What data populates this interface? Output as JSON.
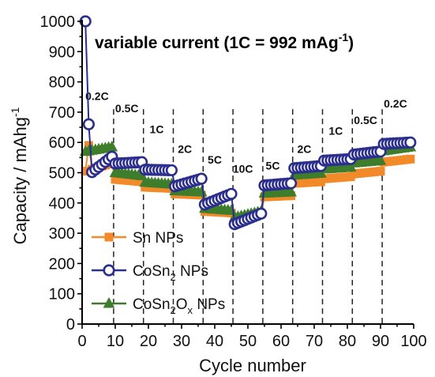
{
  "chart_data": {
    "type": "scatter",
    "title": "variable current (1C = 992 mAg⁻¹)",
    "title_parts": {
      "main": "variable current (1C = 992 mAg",
      "sup": "-1",
      "close": ")"
    },
    "xlabel": "Cycle number",
    "ylabel": "Capacity / mAhg",
    "ylabel_sup": "-1",
    "xlim": [
      0,
      100
    ],
    "ylim": [
      0,
      1000
    ],
    "xticks": [
      "0",
      "10",
      "20",
      "30",
      "40",
      "50",
      "60",
      "70",
      "80",
      "90",
      "100"
    ],
    "yticks": [
      "0",
      "100",
      "200",
      "300",
      "400",
      "500",
      "600",
      "700",
      "800",
      "900",
      "1000"
    ],
    "grid": false,
    "legend_position": "bottom-left",
    "rate_separators": [
      9,
      18,
      27,
      36,
      45,
      54,
      63,
      72,
      81,
      90
    ],
    "rate_labels": [
      {
        "text": "0.2C",
        "x": 4.5,
        "y": 740
      },
      {
        "text": "0.5C",
        "x": 13.5,
        "y": 700
      },
      {
        "text": "1C",
        "x": 22.5,
        "y": 630
      },
      {
        "text": "2C",
        "x": 31,
        "y": 565
      },
      {
        "text": "5C",
        "x": 40,
        "y": 530
      },
      {
        "text": "10C",
        "x": 48.5,
        "y": 500
      },
      {
        "text": "5C",
        "x": 57.5,
        "y": 510
      },
      {
        "text": "2C",
        "x": 67,
        "y": 565
      },
      {
        "text": "1C",
        "x": 76.5,
        "y": 625
      },
      {
        "text": "0.5C",
        "x": 85.5,
        "y": 660
      },
      {
        "text": "0.2C",
        "x": 94.5,
        "y": 715
      }
    ],
    "series": [
      {
        "name": "Sn NPs",
        "legend_parts": [
          "Sn NPs"
        ],
        "color": "#f28a2a",
        "marker": "square",
        "segments": [
          {
            "start": 1,
            "end": 9,
            "first": 505,
            "last": 532
          },
          {
            "start": 10,
            "end": 18,
            "first": 478,
            "last": 470
          },
          {
            "start": 19,
            "end": 27,
            "first": 452,
            "last": 448
          },
          {
            "start": 28,
            "end": 36,
            "first": 430,
            "last": 426
          },
          {
            "start": 37,
            "end": 45,
            "first": 372,
            "last": 367
          },
          {
            "start": 46,
            "end": 54,
            "first": 342,
            "last": 365
          },
          {
            "start": 55,
            "end": 63,
            "first": 420,
            "last": 424
          },
          {
            "start": 64,
            "end": 72,
            "first": 465,
            "last": 470
          },
          {
            "start": 73,
            "end": 81,
            "first": 480,
            "last": 487
          },
          {
            "start": 82,
            "end": 90,
            "first": 496,
            "last": 505
          },
          {
            "start": 91,
            "end": 99,
            "first": 535,
            "last": 545
          }
        ],
        "spikes": [
          {
            "x": 2,
            "y": 590
          }
        ]
      },
      {
        "name": "CoSn2 NPs",
        "legend_parts": [
          "CoSn",
          "2",
          " NPs"
        ],
        "color": "#2b2e8c",
        "marker": "circle",
        "segments": [
          {
            "start": 1,
            "end": 9,
            "first": 485,
            "last": 553
          },
          {
            "start": 10,
            "end": 18,
            "first": 530,
            "last": 535
          },
          {
            "start": 19,
            "end": 27,
            "first": 510,
            "last": 508
          },
          {
            "start": 28,
            "end": 36,
            "first": 455,
            "last": 480
          },
          {
            "start": 37,
            "end": 45,
            "first": 395,
            "last": 430
          },
          {
            "start": 46,
            "end": 54,
            "first": 330,
            "last": 365
          },
          {
            "start": 55,
            "end": 63,
            "first": 458,
            "last": 465
          },
          {
            "start": 64,
            "end": 72,
            "first": 515,
            "last": 522
          },
          {
            "start": 73,
            "end": 81,
            "first": 540,
            "last": 545
          },
          {
            "start": 82,
            "end": 90,
            "first": 560,
            "last": 570
          },
          {
            "start": 91,
            "end": 99,
            "first": 595,
            "last": 600
          }
        ],
        "spikes": [
          {
            "x": 1,
            "y": 1000
          },
          {
            "x": 2,
            "y": 660
          }
        ]
      },
      {
        "name": "CoSn2Ox NPs",
        "legend_parts": [
          "CoSn",
          "2",
          "O",
          "x",
          " NPs"
        ],
        "color": "#3e7d2b",
        "marker": "triangle",
        "segments": [
          {
            "start": 1,
            "end": 9,
            "first": 570,
            "last": 585
          },
          {
            "start": 10,
            "end": 18,
            "first": 500,
            "last": 490
          },
          {
            "start": 19,
            "end": 27,
            "first": 468,
            "last": 462
          },
          {
            "start": 28,
            "end": 36,
            "first": 440,
            "last": 436
          },
          {
            "start": 37,
            "end": 45,
            "first": 382,
            "last": 375
          },
          {
            "start": 46,
            "end": 54,
            "first": 352,
            "last": 372
          },
          {
            "start": 55,
            "end": 63,
            "first": 432,
            "last": 436
          },
          {
            "start": 64,
            "end": 72,
            "first": 492,
            "last": 498
          },
          {
            "start": 73,
            "end": 81,
            "first": 512,
            "last": 518
          },
          {
            "start": 82,
            "end": 90,
            "first": 532,
            "last": 540
          },
          {
            "start": 91,
            "end": 99,
            "first": 572,
            "last": 585
          }
        ],
        "spikes": []
      }
    ]
  }
}
